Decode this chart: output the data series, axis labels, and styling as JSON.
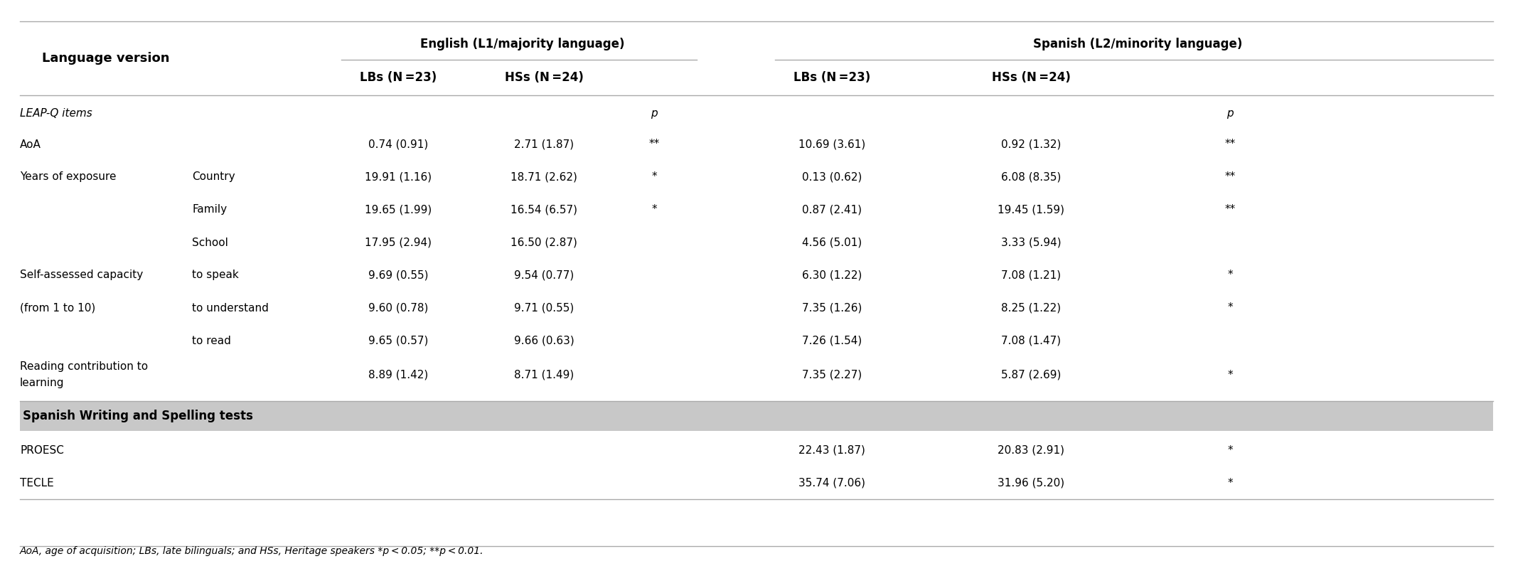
{
  "figsize": [
    21.28,
    8.1
  ],
  "dpi": 100,
  "background_color": "#ffffff",
  "header_group": {
    "lang_version": "Language version",
    "english": "English (L1/majority language)",
    "spanish": "Spanish (L2/minority language)"
  },
  "col_headers": {
    "lbs_en": "LBs (N =23)",
    "hss_en": "HSs (N =24)",
    "lbs_sp": "LBs (N =23)",
    "hss_sp": "HSs (N =24)"
  },
  "p_label": "p",
  "section_italic": "LEAP-Q items",
  "rows": [
    {
      "col1": "AoA",
      "col2": "",
      "en_lbs": "0.74 (0.91)",
      "en_hss": "2.71 (1.87)",
      "en_p": "**",
      "sp_lbs": "10.69 (3.61)",
      "sp_hss": "0.92 (1.32)",
      "sp_p": "**"
    },
    {
      "col1": "Years of exposure",
      "col2": "Country",
      "en_lbs": "19.91 (1.16)",
      "en_hss": "18.71 (2.62)",
      "en_p": "*",
      "sp_lbs": "0.13 (0.62)",
      "sp_hss": "6.08 (8.35)",
      "sp_p": "**"
    },
    {
      "col1": "",
      "col2": "Family",
      "en_lbs": "19.65 (1.99)",
      "en_hss": "16.54 (6.57)",
      "en_p": "*",
      "sp_lbs": "0.87 (2.41)",
      "sp_hss": "19.45 (1.59)",
      "sp_p": "**"
    },
    {
      "col1": "",
      "col2": "School",
      "en_lbs": "17.95 (2.94)",
      "en_hss": "16.50 (2.87)",
      "en_p": "",
      "sp_lbs": "4.56 (5.01)",
      "sp_hss": "3.33 (5.94)",
      "sp_p": ""
    },
    {
      "col1": "Self-assessed capacity",
      "col2": "to speak",
      "en_lbs": "9.69 (0.55)",
      "en_hss": "9.54 (0.77)",
      "en_p": "",
      "sp_lbs": "6.30 (1.22)",
      "sp_hss": "7.08 (1.21)",
      "sp_p": "*"
    },
    {
      "col1": "(from 1 to 10)",
      "col2": "to understand",
      "en_lbs": "9.60 (0.78)",
      "en_hss": "9.71 (0.55)",
      "en_p": "",
      "sp_lbs": "7.35 (1.26)",
      "sp_hss": "8.25 (1.22)",
      "sp_p": "*"
    },
    {
      "col1": "",
      "col2": "to read",
      "en_lbs": "9.65 (0.57)",
      "en_hss": "9.66 (0.63)",
      "en_p": "",
      "sp_lbs": "7.26 (1.54)",
      "sp_hss": "7.08 (1.47)",
      "sp_p": ""
    },
    {
      "col1": "Reading contribution to",
      "col2": "",
      "en_lbs": "8.89 (1.42)",
      "en_hss": "8.71 (1.49)",
      "en_p": "",
      "sp_lbs": "7.35 (2.27)",
      "sp_hss": "5.87 (2.69)",
      "sp_p": "*"
    },
    {
      "col1": "learning",
      "col2": "",
      "en_lbs": "",
      "en_hss": "",
      "en_p": "",
      "sp_lbs": "",
      "sp_hss": "",
      "sp_p": ""
    }
  ],
  "section_bold": "Spanish Writing and Spelling tests",
  "section_bold_bg": "#c8c8c8",
  "bottom_rows": [
    {
      "col1": "PROESC",
      "col2": "",
      "en_lbs": "",
      "en_hss": "",
      "en_p": "",
      "sp_lbs": "22.43 (1.87)",
      "sp_hss": "20.83 (2.91)",
      "sp_p": "*"
    },
    {
      "col1": "TECLE",
      "col2": "",
      "en_lbs": "",
      "en_hss": "",
      "en_p": "",
      "sp_lbs": "35.74 (7.06)",
      "sp_hss": "31.96 (5.20)",
      "sp_p": "*"
    }
  ],
  "footer": "AoA, age of acquisition; LBs, late bilinguals; and HSs, Heritage speakers *p < 0.05; **p < 0.01.",
  "fs_title": 13,
  "fs_header": 12,
  "fs_body": 11,
  "fs_footer": 10,
  "line_color": "#aaaaaa",
  "line_lw": 1.0
}
